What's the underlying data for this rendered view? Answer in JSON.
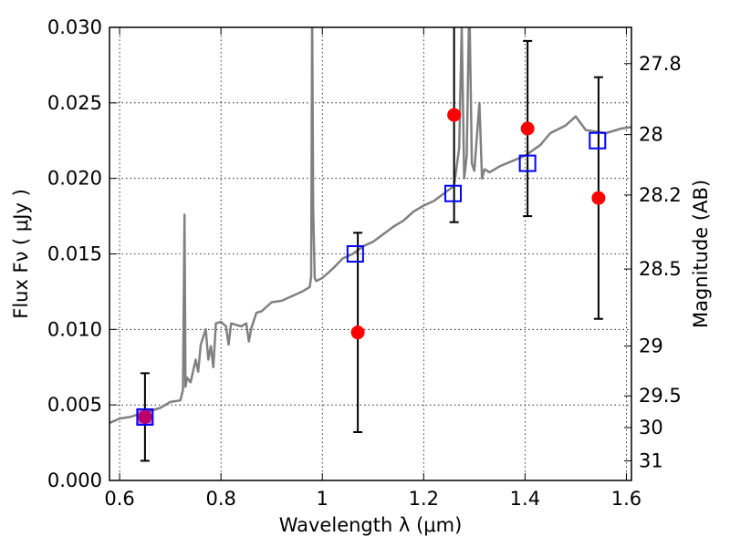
{
  "chart_data": {
    "type": "scatter",
    "title": "",
    "xlabel": "Wavelength  λ (μm)",
    "ylabel": "Flux  Fν  ( μJy )",
    "y2label": "Magnitude (AB)",
    "xlim": [
      0.58,
      1.61
    ],
    "ylim": [
      0.0,
      0.03
    ],
    "grid": true,
    "x_ticks": [
      {
        "value": 0.6,
        "label": "0.6"
      },
      {
        "value": 0.8,
        "label": "0.8"
      },
      {
        "value": 1.0,
        "label": "1"
      },
      {
        "value": 1.2,
        "label": "1.2"
      },
      {
        "value": 1.4,
        "label": "1.4"
      },
      {
        "value": 1.6,
        "label": "1.6"
      }
    ],
    "y_ticks": [
      {
        "value": 0.0,
        "label": "0.000"
      },
      {
        "value": 0.005,
        "label": "0.005"
      },
      {
        "value": 0.01,
        "label": "0.010"
      },
      {
        "value": 0.015,
        "label": "0.015"
      },
      {
        "value": 0.02,
        "label": "0.020"
      },
      {
        "value": 0.025,
        "label": "0.025"
      },
      {
        "value": 0.03,
        "label": "0.030"
      }
    ],
    "y2_ticks": [
      {
        "flux": 0.0276,
        "label": "27.8"
      },
      {
        "flux": 0.0229,
        "label": "28"
      },
      {
        "flux": 0.0189,
        "label": "28.2"
      },
      {
        "flux": 0.014,
        "label": "28.5"
      },
      {
        "flux": 0.0089,
        "label": "29"
      },
      {
        "flux": 0.0056,
        "label": "29.5"
      },
      {
        "flux": 0.0035,
        "label": "30"
      },
      {
        "flux": 0.0013,
        "label": "31"
      }
    ],
    "series": [
      {
        "kind": "line",
        "color": "#808080",
        "x": [
          0.58,
          0.6,
          0.62,
          0.64,
          0.66,
          0.68,
          0.7,
          0.72,
          0.725,
          0.728,
          0.73,
          0.733,
          0.74,
          0.75,
          0.755,
          0.76,
          0.77,
          0.775,
          0.78,
          0.785,
          0.79,
          0.8,
          0.81,
          0.815,
          0.82,
          0.84,
          0.85,
          0.855,
          0.86,
          0.87,
          0.88,
          0.9,
          0.92,
          0.94,
          0.96,
          0.97,
          0.975,
          0.978,
          0.98,
          0.982,
          0.985,
          0.988,
          1.0,
          1.02,
          1.04,
          1.06,
          1.08,
          1.1,
          1.12,
          1.14,
          1.16,
          1.18,
          1.2,
          1.22,
          1.24,
          1.26,
          1.27,
          1.275,
          1.28,
          1.285,
          1.29,
          1.295,
          1.3,
          1.31,
          1.315,
          1.32,
          1.33,
          1.35,
          1.4,
          1.43,
          1.45,
          1.48,
          1.5,
          1.52,
          1.56,
          1.59,
          1.61
        ],
        "y": [
          0.0038,
          0.0041,
          0.0042,
          0.0044,
          0.0046,
          0.0048,
          0.0052,
          0.0053,
          0.006,
          0.0176,
          0.0062,
          0.0068,
          0.0065,
          0.008,
          0.0072,
          0.009,
          0.01,
          0.008,
          0.0089,
          0.0075,
          0.0104,
          0.0105,
          0.0102,
          0.009,
          0.0104,
          0.0102,
          0.0104,
          0.0092,
          0.0101,
          0.0111,
          0.0112,
          0.0118,
          0.0119,
          0.0122,
          0.0125,
          0.0127,
          0.0128,
          0.0135,
          0.0312,
          0.018,
          0.0134,
          0.0132,
          0.0134,
          0.014,
          0.0147,
          0.015,
          0.0155,
          0.0158,
          0.0163,
          0.0168,
          0.0172,
          0.0178,
          0.0182,
          0.0185,
          0.019,
          0.0195,
          0.022,
          0.03,
          0.02,
          0.0215,
          0.032,
          0.021,
          0.0205,
          0.025,
          0.02,
          0.0206,
          0.0204,
          0.0208,
          0.0215,
          0.0222,
          0.023,
          0.0235,
          0.0241,
          0.0232,
          0.023,
          0.0233,
          0.0234
        ]
      },
      {
        "kind": "points-with-errors",
        "marker": "circle",
        "color": "#ff0000",
        "points": [
          {
            "x": 0.65,
            "y": 0.0042,
            "err": 0.0029
          },
          {
            "x": 1.07,
            "y": 0.0098,
            "err": 0.0066
          },
          {
            "x": 1.26,
            "y": 0.0242,
            "err": 0.0071
          },
          {
            "x": 1.405,
            "y": 0.0233,
            "err": 0.0058
          },
          {
            "x": 1.545,
            "y": 0.0187,
            "err": 0.008
          }
        ]
      },
      {
        "kind": "points",
        "marker": "square-open",
        "color": "#0000ff",
        "points": [
          {
            "x": 0.65,
            "y": 0.0042
          },
          {
            "x": 1.065,
            "y": 0.015
          },
          {
            "x": 1.258,
            "y": 0.019
          },
          {
            "x": 1.405,
            "y": 0.021
          },
          {
            "x": 1.543,
            "y": 0.0225
          }
        ]
      }
    ]
  }
}
